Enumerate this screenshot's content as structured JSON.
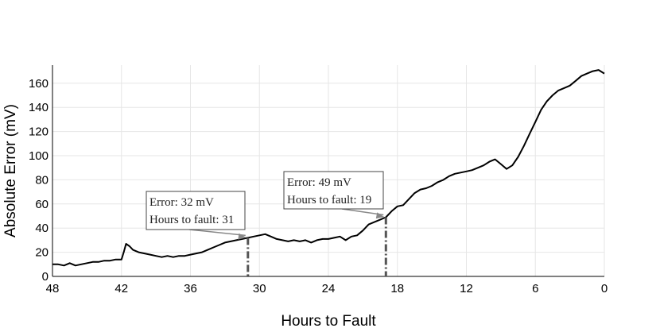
{
  "chart_data": {
    "type": "line",
    "xlabel": "Hours to Fault",
    "ylabel": "Absolute Error (mV)",
    "xlim": [
      48,
      0
    ],
    "ylim": [
      0,
      175
    ],
    "x_ticks": [
      48,
      42,
      36,
      30,
      24,
      18,
      12,
      6,
      0
    ],
    "y_ticks": [
      0,
      20,
      40,
      60,
      80,
      100,
      120,
      140,
      160
    ],
    "grid": true,
    "line_color": "#000000",
    "series": [
      {
        "x": [
          48,
          47.5,
          47,
          46.5,
          46,
          45.5,
          45,
          44.5,
          44,
          43.5,
          43,
          42.5,
          42,
          41.8,
          41.6,
          41.3,
          41,
          40.5,
          40,
          39.5,
          39,
          38.5,
          38,
          37.5,
          37,
          36.5,
          36,
          35.5,
          35,
          34.5,
          34,
          33.5,
          33,
          32.5,
          32,
          31.5,
          31,
          30.5,
          30,
          29.5,
          29,
          28.5,
          28,
          27.5,
          27,
          26.5,
          26,
          25.5,
          25,
          24.5,
          24,
          23.5,
          23,
          22.5,
          22,
          21.5,
          21,
          20.5,
          20,
          19.5,
          19,
          18.5,
          18,
          17.5,
          17,
          16.5,
          16,
          15.5,
          15,
          14.5,
          14,
          13.5,
          13,
          12.5,
          12,
          11.5,
          11,
          10.5,
          10,
          9.5,
          9,
          8.5,
          8,
          7.5,
          7,
          6.5,
          6,
          5.5,
          5,
          4.5,
          4,
          3.5,
          3,
          2.5,
          2,
          1.5,
          1,
          0.5,
          0
        ],
        "y": [
          10,
          10,
          9,
          11,
          9,
          10,
          11,
          12,
          12,
          13,
          13,
          14,
          14,
          20,
          27,
          25,
          22,
          20,
          19,
          18,
          17,
          16,
          17,
          16,
          17,
          17,
          18,
          19,
          20,
          22,
          24,
          26,
          28,
          29,
          30,
          31,
          32,
          33,
          34,
          35,
          33,
          31,
          30,
          29,
          30,
          29,
          30,
          28,
          30,
          31,
          31,
          32,
          33,
          30,
          33,
          34,
          38,
          43,
          45,
          47,
          49,
          54,
          58,
          59,
          64,
          69,
          72,
          73,
          75,
          78,
          80,
          83,
          85,
          86,
          87,
          88,
          90,
          92,
          95,
          97,
          93,
          89,
          92,
          99,
          108,
          118,
          128,
          138,
          145,
          150,
          154,
          156,
          158,
          162,
          166,
          168,
          170,
          171,
          168
        ]
      }
    ],
    "annotations": [
      {
        "line1": "Error: 32 mV",
        "line2": "Hours to fault: 31",
        "x": 31,
        "y": 32,
        "vline": true
      },
      {
        "line1": "Error: 49 mV",
        "line2": "Hours to fault: 19",
        "x": 19,
        "y": 49,
        "vline": true
      }
    ]
  }
}
